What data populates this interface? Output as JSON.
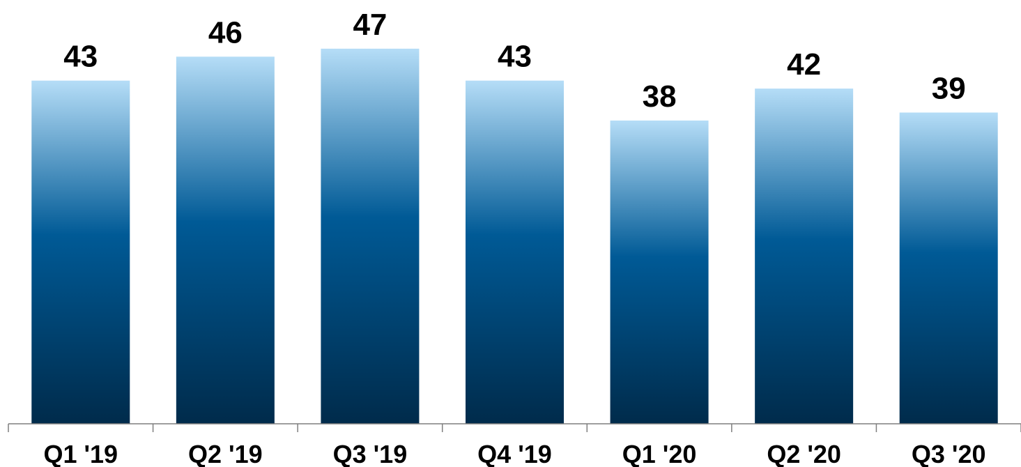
{
  "chart_data": {
    "type": "bar",
    "categories": [
      "Q1 '19",
      "Q2 '19",
      "Q3 '19",
      "Q4 '19",
      "Q1 '20",
      "Q2 '20",
      "Q3 '20"
    ],
    "values": [
      43,
      46,
      47,
      43,
      38,
      42,
      39
    ],
    "title": "",
    "xlabel": "",
    "ylabel": "",
    "ylim": [
      0,
      53
    ],
    "grid": false,
    "data_labels": true,
    "colors": {
      "bar_top": "#b5ddf7",
      "bar_mid": "#005a96",
      "bar_bottom": "#002b4b",
      "axis": "#7f7f7f",
      "text": "#000000"
    }
  }
}
